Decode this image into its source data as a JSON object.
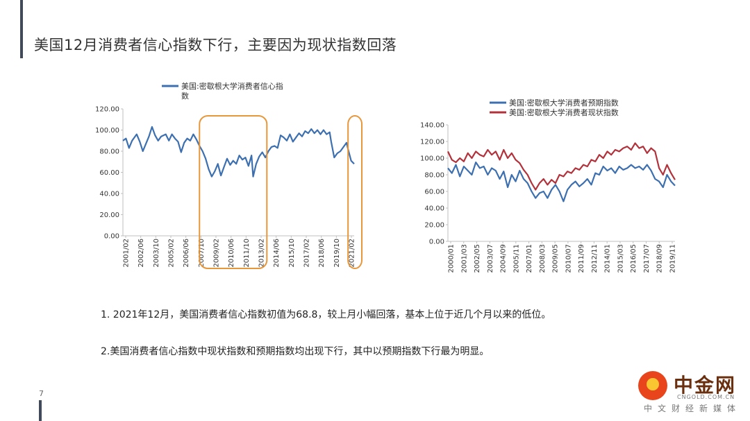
{
  "title": "美国12月消费者信心指数下行，主要因为现状指数回落",
  "page_number": "7",
  "notes": [
    "1. 2021年12月，美国消费者信心指数初值为68.8，较上月小幅回落，基本上位于近几个月以来的低位。",
    "2.美国消费者信心指数中现状指数和预期指数均出现下行，其中以预期指数下行最为明显。"
  ],
  "logo": {
    "brand": "中金网",
    "url": "CNGOLD.COM.CN",
    "subtitle": "中文财经新媒体"
  },
  "colors": {
    "blue": "#3c6fb0",
    "red": "#b2313a",
    "highlight": "#e8963a",
    "axis": "#bfbfbf"
  },
  "chart_data": [
    {
      "type": "line",
      "legend": [
        "美国:密歇根大学消费者信心指",
        "数"
      ],
      "ylim": [
        0,
        120
      ],
      "yticks": [
        "0.00",
        "20.00",
        "40.00",
        "60.00",
        "80.00",
        "100.00",
        "120.00"
      ],
      "xticks": [
        "2001/02",
        "2002/06",
        "2003/10",
        "2005/02",
        "2006/06",
        "2007/10",
        "2009/02",
        "2010/06",
        "2011/10",
        "2013/02",
        "2014/06",
        "2015/10",
        "2017/02",
        "2018/06",
        "2019/10",
        "2021/02"
      ],
      "series": [
        {
          "name": "美国:密歇根大学消费者信心指数",
          "color": "#3c6fb0",
          "points": [
            [
              0,
              90
            ],
            [
              2,
              92
            ],
            [
              4,
              83
            ],
            [
              6,
              90
            ],
            [
              9,
              96
            ],
            [
              11,
              89
            ],
            [
              13,
              80
            ],
            [
              15,
              87
            ],
            [
              17,
              94
            ],
            [
              19,
              103
            ],
            [
              21,
              95
            ],
            [
              23,
              90
            ],
            [
              25,
              94
            ],
            [
              28,
              96
            ],
            [
              30,
              90
            ],
            [
              32,
              96
            ],
            [
              34,
              92
            ],
            [
              36,
              89
            ],
            [
              38,
              79
            ],
            [
              40,
              88
            ],
            [
              42,
              92
            ],
            [
              44,
              90
            ],
            [
              46,
              96
            ],
            [
              48,
              91
            ],
            [
              50,
              85
            ],
            [
              52,
              80
            ],
            [
              54,
              73
            ],
            [
              56,
              63
            ],
            [
              58,
              56
            ],
            [
              60,
              61
            ],
            [
              62,
              68
            ],
            [
              64,
              57
            ],
            [
              66,
              65
            ],
            [
              68,
              73
            ],
            [
              70,
              67
            ],
            [
              72,
              71
            ],
            [
              74,
              68
            ],
            [
              76,
              76
            ],
            [
              78,
              72
            ],
            [
              80,
              74
            ],
            [
              82,
              66
            ],
            [
              84,
              76
            ],
            [
              85,
              56
            ],
            [
              87,
              68
            ],
            [
              89,
              75
            ],
            [
              91,
              79
            ],
            [
              93,
              74
            ],
            [
              95,
              80
            ],
            [
              97,
              84
            ],
            [
              99,
              85
            ],
            [
              101,
              83
            ],
            [
              103,
              95
            ],
            [
              105,
              93
            ],
            [
              107,
              90
            ],
            [
              109,
              96
            ],
            [
              111,
              89
            ],
            [
              113,
              93
            ],
            [
              115,
              97
            ],
            [
              117,
              94
            ],
            [
              119,
              99
            ],
            [
              121,
              97
            ],
            [
              123,
              101
            ],
            [
              125,
              97
            ],
            [
              127,
              100
            ],
            [
              129,
              96
            ],
            [
              131,
              100
            ],
            [
              133,
              96
            ],
            [
              135,
              98
            ],
            [
              136,
              89
            ],
            [
              138,
              74
            ],
            [
              140,
              78
            ],
            [
              142,
              80
            ],
            [
              144,
              84
            ],
            [
              146,
              88
            ],
            [
              147,
              82
            ],
            [
              149,
              71
            ],
            [
              151,
              68
            ]
          ]
        }
      ],
      "highlight_ranges": [
        [
          50,
          94
        ],
        [
          147,
          156
        ]
      ]
    },
    {
      "type": "line",
      "legend": [
        "美国:密歇根大学消费者预期指数",
        "美国:密歇根大学消费者现状指数"
      ],
      "ylim": [
        0,
        140
      ],
      "yticks": [
        "0.00",
        "20.00",
        "40.00",
        "60.00",
        "80.00",
        "100.00",
        "120.00",
        "140.00"
      ],
      "xticks": [
        "2000/01",
        "2001/03",
        "2002/05",
        "2003/07",
        "2004/09",
        "2005/11",
        "2007/01",
        "2008/03",
        "2009/05",
        "2010/07",
        "2011/09",
        "2012/11",
        "2014/01",
        "2015/03",
        "2016/05",
        "2017/07",
        "2018/09",
        "2019/11"
      ],
      "series": [
        {
          "name": "美国:密歇根大学消费者预期指数",
          "color": "#3c6fb0",
          "points": [
            [
              0,
              88
            ],
            [
              2,
              82
            ],
            [
              4,
              92
            ],
            [
              6,
              78
            ],
            [
              8,
              90
            ],
            [
              10,
              85
            ],
            [
              12,
              80
            ],
            [
              14,
              95
            ],
            [
              16,
              88
            ],
            [
              18,
              90
            ],
            [
              20,
              80
            ],
            [
              22,
              88
            ],
            [
              24,
              85
            ],
            [
              26,
              75
            ],
            [
              28,
              84
            ],
            [
              30,
              65
            ],
            [
              32,
              80
            ],
            [
              34,
              72
            ],
            [
              36,
              85
            ],
            [
              38,
              75
            ],
            [
              40,
              70
            ],
            [
              42,
              60
            ],
            [
              44,
              52
            ],
            [
              46,
              58
            ],
            [
              48,
              60
            ],
            [
              50,
              52
            ],
            [
              52,
              62
            ],
            [
              54,
              68
            ],
            [
              56,
              60
            ],
            [
              58,
              48
            ],
            [
              60,
              62
            ],
            [
              62,
              68
            ],
            [
              64,
              72
            ],
            [
              66,
              66
            ],
            [
              68,
              70
            ],
            [
              70,
              75
            ],
            [
              72,
              68
            ],
            [
              74,
              82
            ],
            [
              76,
              80
            ],
            [
              78,
              90
            ],
            [
              80,
              85
            ],
            [
              82,
              88
            ],
            [
              84,
              82
            ],
            [
              86,
              90
            ],
            [
              88,
              86
            ],
            [
              90,
              88
            ],
            [
              92,
              92
            ],
            [
              94,
              88
            ],
            [
              96,
              90
            ],
            [
              98,
              86
            ],
            [
              100,
              92
            ],
            [
              102,
              85
            ],
            [
              104,
              75
            ],
            [
              106,
              72
            ],
            [
              108,
              65
            ],
            [
              110,
              80
            ],
            [
              112,
              72
            ],
            [
              114,
              67
            ]
          ]
        },
        {
          "name": "美国:密歇根大学消费者现状指数",
          "color": "#b2313a",
          "points": [
            [
              0,
              108
            ],
            [
              2,
              98
            ],
            [
              4,
              95
            ],
            [
              6,
              100
            ],
            [
              8,
              96
            ],
            [
              10,
              106
            ],
            [
              12,
              100
            ],
            [
              14,
              108
            ],
            [
              16,
              104
            ],
            [
              18,
              102
            ],
            [
              20,
              110
            ],
            [
              22,
              104
            ],
            [
              24,
              108
            ],
            [
              26,
              98
            ],
            [
              28,
              110
            ],
            [
              30,
              100
            ],
            [
              32,
              106
            ],
            [
              34,
              98
            ],
            [
              36,
              94
            ],
            [
              38,
              86
            ],
            [
              40,
              80
            ],
            [
              42,
              70
            ],
            [
              44,
              62
            ],
            [
              46,
              70
            ],
            [
              48,
              75
            ],
            [
              50,
              68
            ],
            [
              52,
              74
            ],
            [
              54,
              70
            ],
            [
              56,
              80
            ],
            [
              58,
              78
            ],
            [
              60,
              84
            ],
            [
              62,
              82
            ],
            [
              64,
              88
            ],
            [
              66,
              86
            ],
            [
              68,
              92
            ],
            [
              70,
              90
            ],
            [
              72,
              98
            ],
            [
              74,
              96
            ],
            [
              76,
              104
            ],
            [
              78,
              100
            ],
            [
              80,
              108
            ],
            [
              82,
              104
            ],
            [
              84,
              110
            ],
            [
              86,
              108
            ],
            [
              88,
              112
            ],
            [
              90,
              114
            ],
            [
              92,
              110
            ],
            [
              94,
              118
            ],
            [
              96,
              112
            ],
            [
              98,
              114
            ],
            [
              100,
              106
            ],
            [
              102,
              112
            ],
            [
              104,
              108
            ],
            [
              106,
              88
            ],
            [
              108,
              80
            ],
            [
              110,
              92
            ],
            [
              112,
              82
            ],
            [
              114,
              74
            ]
          ]
        }
      ]
    }
  ]
}
